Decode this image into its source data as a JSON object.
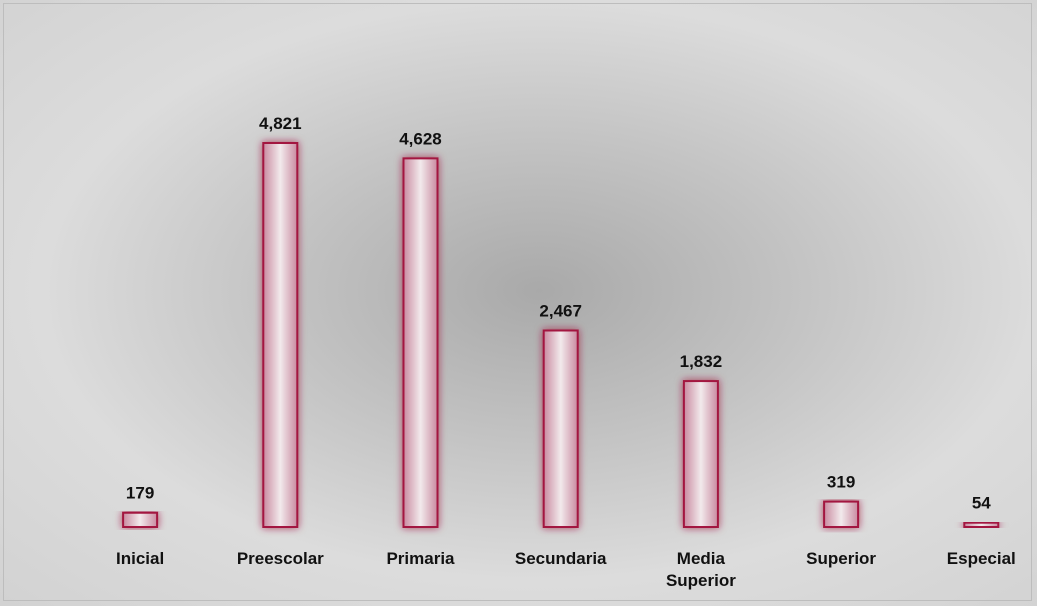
{
  "chart_data": {
    "type": "bar",
    "categories": [
      "Inicial",
      "Preescolar",
      "Primaria",
      "Secundaria",
      "Media Superior",
      "Superior",
      "Especial"
    ],
    "values": [
      179,
      4821,
      4628,
      2467,
      1832,
      319,
      54
    ],
    "value_labels": [
      "179",
      "4,821",
      "4,628",
      "2,467",
      "1,832",
      "319",
      "54"
    ],
    "color": "#a3163f"
  }
}
